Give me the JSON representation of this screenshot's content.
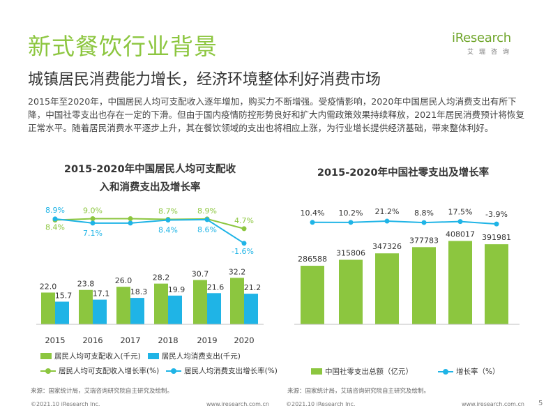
{
  "header": {
    "title": "新式餐饮行业背景",
    "subtitle": "城镇居民消费能力增长，经济环境整体利好消费市场",
    "intro": "2015年至2020年，中国居民人均可支配收入逐年增加，购买力不断增强。受疫情影响，2020年中国居民人均消费支出有所下降，中国社零支出也存在一定的下滑。但由于国内疫情防控形势良好和扩大内需政策效果持续释放，2021年居民消费预计将恢复正常水平。随着居民消费水平逐步上升，其在餐饮领域的支出也将相应上涨，为行业增长提供经济基础，带来整体利好。"
  },
  "logo": {
    "main": "iResearch",
    "sub": "艾瑞咨询"
  },
  "colors": {
    "green": "#8cc63f",
    "blue": "#1fb4e6",
    "title_green": "#8cc63f"
  },
  "chart_data": [
    {
      "type": "bar",
      "title_line1": "2015-2020年中国居民人均可支配收",
      "title_line2": "入和消费支出及增长率",
      "categories": [
        "2015",
        "2016",
        "2017",
        "2018",
        "2019",
        "2020"
      ],
      "series": [
        {
          "name": "居民人均可支配收入(千元)",
          "type": "bar",
          "color": "#8cc63f",
          "values": [
            22.0,
            23.8,
            26.0,
            28.2,
            30.7,
            32.2
          ],
          "labels": [
            "22.0",
            "23.8",
            "26.0",
            "28.2",
            "30.7",
            "32.2"
          ]
        },
        {
          "name": "居民人均消费支出(千元)",
          "type": "bar",
          "color": "#1fb4e6",
          "values": [
            15.7,
            17.1,
            18.3,
            19.9,
            21.6,
            21.2
          ],
          "labels": [
            "15.7",
            "17.1",
            "18.3",
            "19.9",
            "21.6",
            "21.2"
          ]
        },
        {
          "name": "居民人均可支配收入增长率(%)",
          "type": "line",
          "color": "#8cc63f",
          "values": [
            8.4,
            9.0,
            9.0,
            8.7,
            8.9,
            4.7
          ],
          "labels": [
            "8.4%",
            "9.0%",
            "",
            "8.7%",
            "8.9%",
            "4.7%"
          ]
        },
        {
          "name": "居民人均消费支出增长率(%)",
          "type": "line",
          "color": "#1fb4e6",
          "values": [
            8.9,
            7.1,
            7.1,
            8.4,
            8.6,
            -1.6
          ],
          "labels": [
            "8.9%",
            "7.1%",
            "",
            "8.4%",
            "8.6%",
            "-1.6%"
          ]
        }
      ]
    },
    {
      "type": "bar",
      "title": "2015-2020年中国社零支出及增长率",
      "categories": [
        "2015",
        "2016",
        "2017",
        "2018",
        "2019",
        "2020"
      ],
      "series": [
        {
          "name": "中国社零支出总额（亿元）",
          "type": "bar",
          "color": "#8cc63f",
          "values": [
            286588,
            315806,
            347326,
            377783,
            408017,
            391981
          ],
          "labels": [
            "286588",
            "315806",
            "347326",
            "377783",
            "408017",
            "391981"
          ]
        },
        {
          "name": "增长率（%）",
          "type": "line",
          "color": "#1fb4e6",
          "values": [
            10.4,
            10.2,
            21.2,
            8.8,
            17.5,
            -3.9
          ],
          "labels": [
            "10.4%",
            "10.2%",
            "21.2%",
            "8.8%",
            "17.5%",
            "-3.9%"
          ]
        }
      ]
    }
  ],
  "sources": {
    "left": "来源：国家统计局，艾瑞咨询研究院自主研究及绘制。",
    "right": "来源：国家统计局，艾瑞咨询研究院自主研究及绘制。"
  },
  "footer": {
    "copyright_left": "©2021.10 iResearch Inc.",
    "url_left": "www.iresearch.com.cn",
    "copyright_right": "©2021.10 iResearch Inc.",
    "url_right": "www.iresearch.com.cn",
    "page_number": "5"
  }
}
